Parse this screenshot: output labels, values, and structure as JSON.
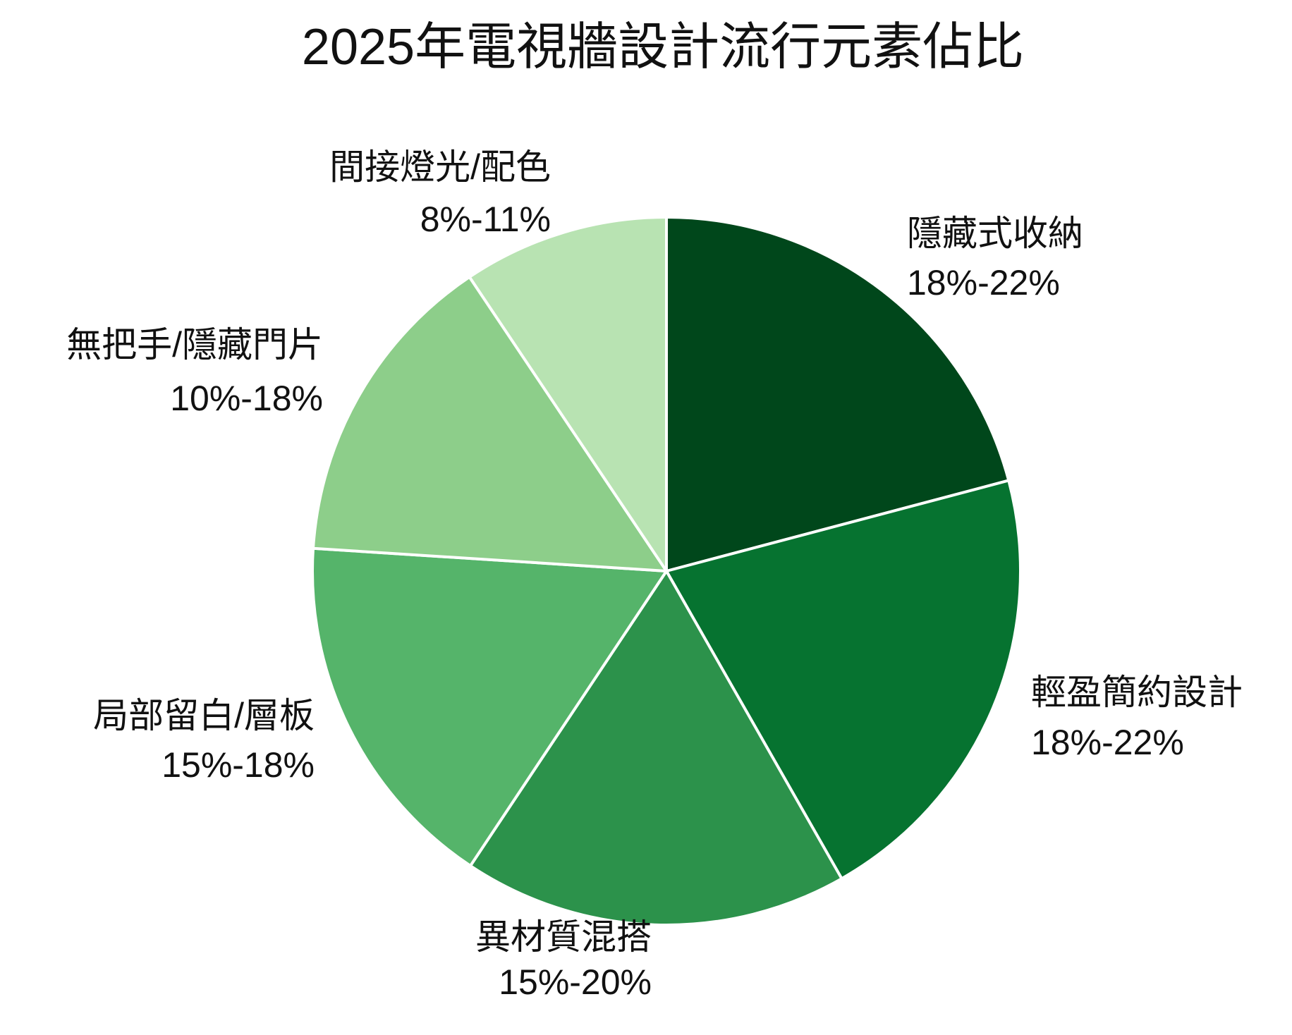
{
  "chart_data": {
    "type": "pie",
    "title": "2025年電視牆設計流行元素佔比",
    "categories": [
      "隱藏式收納",
      "輕盈簡約設計",
      "異材質混搭",
      "局部留白/層板",
      "無把手/隱藏門片",
      "間接燈光/配色"
    ],
    "range_labels": [
      "18%-22%",
      "18%-22%",
      "15%-20%",
      "15%-18%",
      "10%-18%",
      "8%-11%"
    ],
    "values": [
      20.9,
      20.9,
      17.6,
      16.7,
      14.6,
      9.4
    ],
    "colors": [
      "#00471b",
      "#067330",
      "#2c924b",
      "#55b46a",
      "#8dce8a",
      "#b8e3b2"
    ]
  }
}
